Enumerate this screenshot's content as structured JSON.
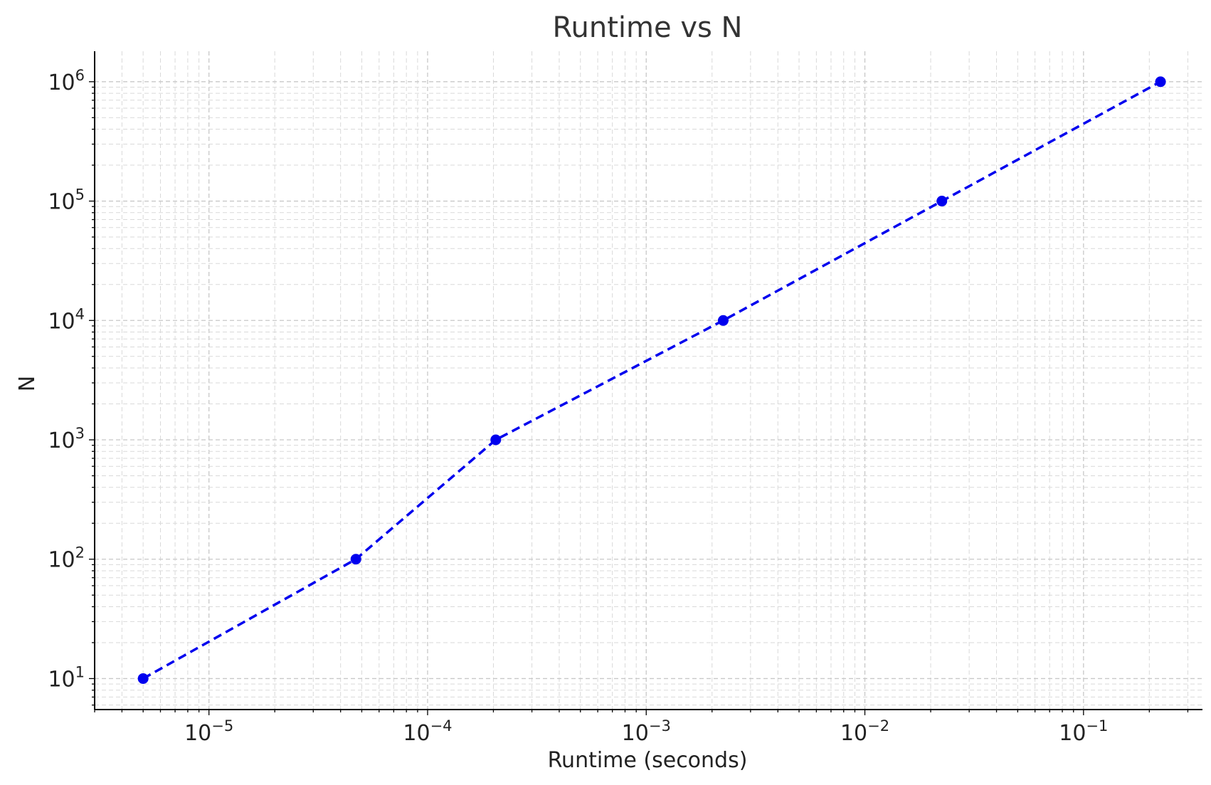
{
  "chart_data": {
    "type": "line",
    "title": "Runtime vs N",
    "xlabel": "Runtime (seconds)",
    "ylabel": "N",
    "xscale": "log",
    "yscale": "log",
    "xlim": [
      3e-06,
      0.35
    ],
    "ylim": [
      5.5,
      1800000.0
    ],
    "grid": true,
    "grid_minor": true,
    "x_ticks": [
      {
        "value": 1e-05,
        "base": "10",
        "exp": "−5"
      },
      {
        "value": 0.0001,
        "base": "10",
        "exp": "−4"
      },
      {
        "value": 0.001,
        "base": "10",
        "exp": "−3"
      },
      {
        "value": 0.01,
        "base": "10",
        "exp": "−2"
      },
      {
        "value": 0.1,
        "base": "10",
        "exp": "−1"
      }
    ],
    "y_ticks": [
      {
        "value": 10,
        "base": "10",
        "exp": "1"
      },
      {
        "value": 100,
        "base": "10",
        "exp": "2"
      },
      {
        "value": 1000,
        "base": "10",
        "exp": "3"
      },
      {
        "value": 10000,
        "base": "10",
        "exp": "4"
      },
      {
        "value": 100000,
        "base": "10",
        "exp": "5"
      },
      {
        "value": 1000000,
        "base": "10",
        "exp": "6"
      }
    ],
    "series": [
      {
        "x": [
          5e-06,
          4.7e-05,
          0.000205,
          0.00225,
          0.0225,
          0.225
        ],
        "y": [
          10,
          100,
          1000,
          10000,
          100000,
          1000000
        ],
        "line_style": "dashed",
        "marker": "circle",
        "color": "#0000ee"
      }
    ]
  }
}
